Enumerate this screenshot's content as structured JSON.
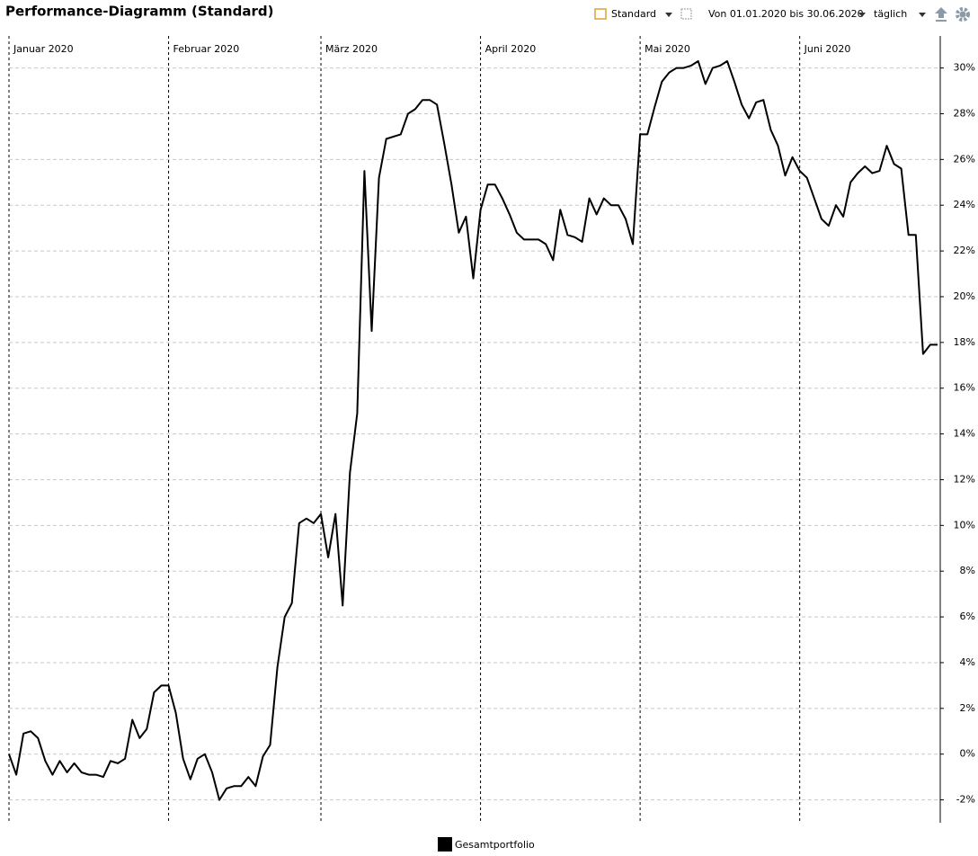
{
  "toolbar": {
    "title": "Performance-Diagramm (Standard)",
    "view": "Standard",
    "range": "Von 01.01.2020 bis 30.06.2020",
    "interval": "täglich"
  },
  "chart_data": {
    "type": "line",
    "categories": [
      "Januar 2020",
      null,
      null,
      null,
      null,
      null,
      null,
      null,
      null,
      null,
      null,
      null,
      null,
      null,
      null,
      null,
      null,
      null,
      null,
      null,
      null,
      null,
      "Februar 2020",
      null,
      null,
      null,
      null,
      null,
      null,
      null,
      null,
      null,
      null,
      null,
      null,
      null,
      null,
      null,
      null,
      null,
      null,
      null,
      null,
      "März 2020",
      null,
      null,
      null,
      null,
      null,
      null,
      null,
      null,
      null,
      null,
      null,
      null,
      null,
      null,
      null,
      null,
      null,
      null,
      null,
      null,
      null,
      "April 2020",
      null,
      null,
      null,
      null,
      null,
      null,
      null,
      null,
      null,
      null,
      null,
      null,
      null,
      null,
      null,
      null,
      null,
      null,
      null,
      null,
      null,
      "Mai 2020",
      null,
      null,
      null,
      null,
      null,
      null,
      null,
      null,
      null,
      null,
      null,
      null,
      null,
      null,
      null,
      null,
      null,
      null,
      null,
      null,
      null,
      "Juni 2020",
      null,
      null,
      null,
      null,
      null,
      null,
      null,
      null,
      null,
      null,
      null,
      null,
      null,
      null,
      null,
      null,
      null,
      null,
      null
    ],
    "series": [
      {
        "name": "Gesamtportfolio",
        "color": "#000000",
        "values": [
          0.0,
          -0.9,
          0.9,
          1.0,
          0.7,
          -0.3,
          -0.9,
          -0.3,
          -0.8,
          -0.4,
          -0.8,
          -0.9,
          -0.9,
          -1.0,
          -0.3,
          -0.4,
          -0.2,
          1.5,
          0.7,
          1.1,
          2.7,
          3.0,
          3.0,
          1.8,
          -0.2,
          -1.1,
          -0.2,
          0.0,
          -0.8,
          -2.0,
          -1.5,
          -1.4,
          -1.4,
          -1.0,
          -1.4,
          -0.1,
          0.4,
          3.8,
          6.0,
          6.6,
          10.1,
          10.3,
          10.1,
          10.5,
          8.6,
          10.5,
          6.5,
          12.3,
          14.9,
          25.5,
          18.5,
          25.2,
          26.9,
          27.0,
          27.1,
          28.0,
          28.2,
          28.6,
          28.6,
          28.4,
          26.7,
          24.9,
          22.8,
          23.5,
          20.8,
          23.8,
          24.9,
          24.9,
          24.3,
          23.6,
          22.8,
          22.5,
          22.5,
          22.5,
          22.3,
          21.6,
          23.8,
          22.7,
          22.6,
          22.4,
          24.3,
          23.6,
          24.3,
          24.0,
          24.0,
          23.4,
          22.3,
          27.1,
          27.1,
          28.3,
          29.4,
          29.8,
          30.0,
          30.0,
          30.1,
          30.3,
          29.3,
          30.0,
          30.1,
          30.3,
          29.4,
          28.4,
          27.8,
          28.5,
          28.6,
          27.3,
          26.6,
          25.3,
          26.1,
          25.5,
          25.2,
          24.3,
          23.4,
          23.1,
          24.0,
          23.5,
          25.0,
          25.4,
          25.7,
          25.4,
          25.5,
          26.6,
          25.8,
          25.6,
          22.7,
          22.7,
          17.5,
          17.9,
          17.9
        ]
      }
    ],
    "ylim": [
      -3,
      31.4
    ],
    "yticks": [
      {
        "value": -2,
        "label": "-2%"
      },
      {
        "value": 0,
        "label": "0%"
      },
      {
        "value": 2,
        "label": "2%"
      },
      {
        "value": 4,
        "label": "4%"
      },
      {
        "value": 6,
        "label": "6%"
      },
      {
        "value": 8,
        "label": "8%"
      },
      {
        "value": 10,
        "label": "10%"
      },
      {
        "value": 12,
        "label": "12%"
      },
      {
        "value": 14,
        "label": "14%"
      },
      {
        "value": 16,
        "label": "16%"
      },
      {
        "value": 18,
        "label": "18%"
      },
      {
        "value": 20,
        "label": "20%"
      },
      {
        "value": 22,
        "label": "22%"
      },
      {
        "value": 24,
        "label": "24%"
      },
      {
        "value": 26,
        "label": "26%"
      },
      {
        "value": 28,
        "label": "28%"
      },
      {
        "value": 30,
        "label": "30%"
      }
    ],
    "grid": true,
    "legend": "bottom"
  }
}
